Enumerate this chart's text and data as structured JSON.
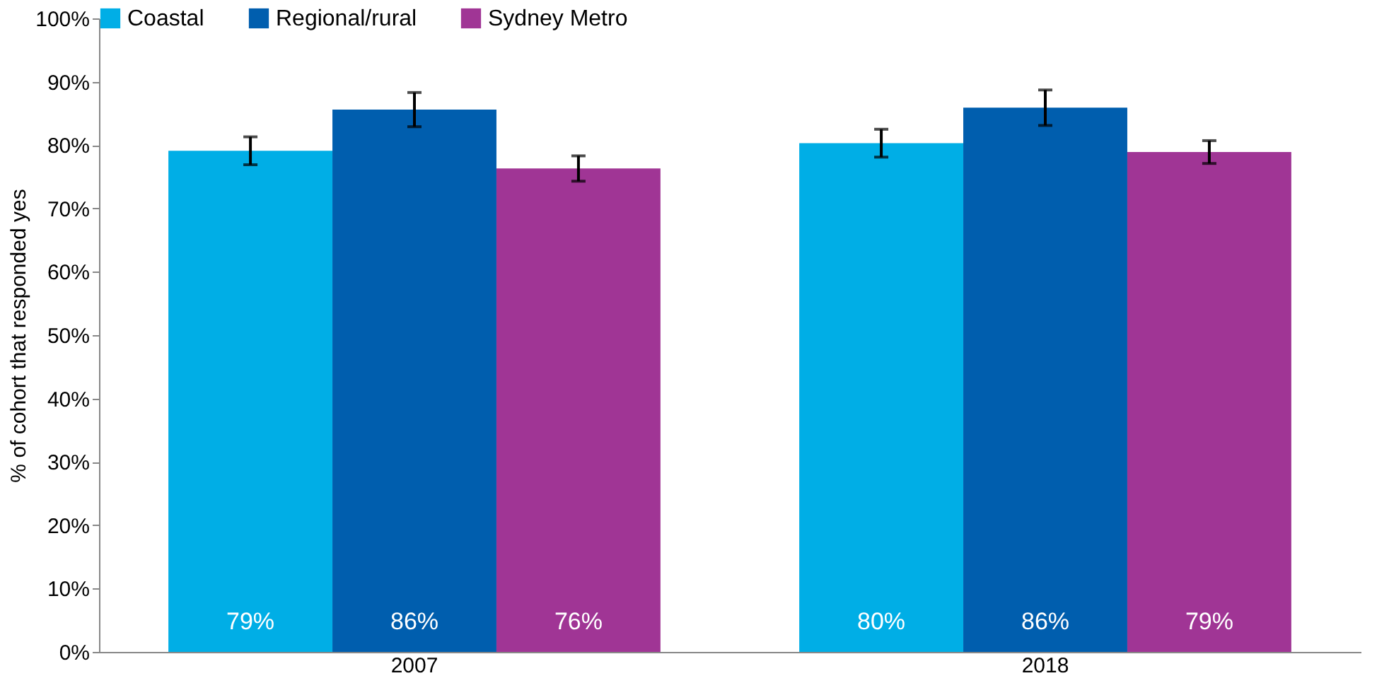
{
  "chart_data": {
    "type": "bar",
    "ylabel": "% of cohort that responded yes",
    "categories": [
      "2007",
      "2018"
    ],
    "series": [
      {
        "name": "Coastal",
        "color": "#00aee6",
        "values": [
          79.1,
          80.3
        ],
        "errors": [
          2.2,
          2.2
        ],
        "value_labels": [
          "79%",
          "80%"
        ]
      },
      {
        "name": "Regional/rural",
        "color": "#005eae",
        "values": [
          85.6,
          85.9
        ],
        "errors": [
          2.7,
          2.8
        ],
        "value_labels": [
          "86%",
          "86%"
        ]
      },
      {
        "name": "Sydney Metro",
        "color": "#a03595",
        "values": [
          76.3,
          78.9
        ],
        "errors": [
          2.0,
          1.8
        ],
        "value_labels": [
          "76%",
          "79%"
        ]
      }
    ],
    "ylim": [
      0,
      100
    ],
    "yticks": [
      {
        "value": 0,
        "label": "0%"
      },
      {
        "value": 10,
        "label": "10%"
      },
      {
        "value": 20,
        "label": "20%"
      },
      {
        "value": 30,
        "label": "30%"
      },
      {
        "value": 40,
        "label": "40%"
      },
      {
        "value": 50,
        "label": "50%"
      },
      {
        "value": 60,
        "label": "60%"
      },
      {
        "value": 70,
        "label": "70%"
      },
      {
        "value": 80,
        "label": "80%"
      },
      {
        "value": 90,
        "label": "90%"
      },
      {
        "value": 100,
        "label": "100%"
      }
    ],
    "grid": false,
    "legend": "top"
  }
}
